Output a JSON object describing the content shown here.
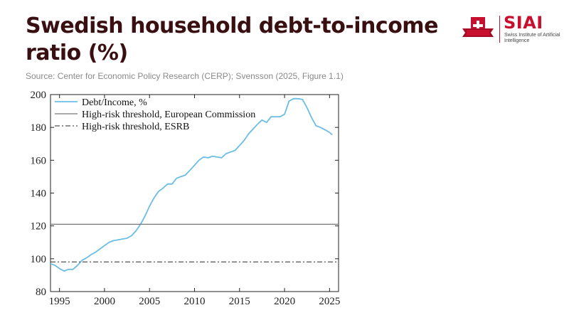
{
  "header": {
    "title": "Swedish household debt-to-income ratio (%)",
    "source": "Source: Center for Economic Policy Research (CERP); Svensson (2025, Figure 1.1)"
  },
  "logo": {
    "name": "SIAI",
    "subtitle": "Swiss Institute of Artificial Intelligence",
    "ribbon_text": "",
    "color": "#c8102e"
  },
  "colors": {
    "series": "#6bbde6",
    "ec_threshold": "#777777",
    "esrb_threshold": "#555555",
    "axis": "#222222"
  },
  "chart_data": {
    "type": "line",
    "title": "",
    "xlabel": "",
    "ylabel": "",
    "xlim": [
      1994,
      2026
    ],
    "ylim": [
      80,
      200
    ],
    "x_ticks": [
      "1995",
      "2000",
      "2005",
      "2010",
      "2015",
      "2020",
      "2025"
    ],
    "y_ticks": [
      "80",
      "100",
      "120",
      "140",
      "160",
      "180",
      "200"
    ],
    "grid": false,
    "legend_position": "top-left",
    "legend": [
      "Debt/Income, %",
      "High-risk threshold, European Commission",
      "High-risk threshold, ESRB"
    ],
    "series": [
      {
        "name": "Debt/Income, %",
        "style": "solid",
        "x": [
          1994.0,
          1994.5,
          1995.0,
          1995.5,
          1996.0,
          1996.5,
          1997.0,
          1997.5,
          1998.0,
          1998.5,
          1999.0,
          1999.5,
          2000.0,
          2000.5,
          2001.0,
          2001.5,
          2002.0,
          2002.5,
          2003.0,
          2003.5,
          2004.0,
          2004.5,
          2005.0,
          2005.5,
          2006.0,
          2006.5,
          2007.0,
          2007.5,
          2008.0,
          2008.5,
          2009.0,
          2009.5,
          2010.0,
          2010.5,
          2011.0,
          2011.5,
          2012.0,
          2012.5,
          2013.0,
          2013.5,
          2014.0,
          2014.5,
          2015.0,
          2015.5,
          2016.0,
          2016.5,
          2017.0,
          2017.5,
          2018.0,
          2018.5,
          2019.0,
          2019.5,
          2020.0,
          2020.5,
          2021.0,
          2021.5,
          2022.0,
          2022.5,
          2023.0,
          2023.5,
          2024.0,
          2024.5,
          2025.0,
          2025.3
        ],
        "values": [
          97,
          96,
          94,
          92.5,
          93.5,
          93.5,
          96,
          99,
          100.5,
          102.5,
          104,
          106,
          108,
          110,
          111,
          111.5,
          112,
          112.5,
          114,
          117,
          121,
          126,
          132,
          137,
          141,
          143,
          145.5,
          145.5,
          149,
          150,
          151,
          154,
          157,
          160,
          162,
          161.5,
          162.5,
          162,
          161.5,
          164,
          165,
          166,
          169,
          172,
          176,
          179,
          182,
          184.5,
          183,
          186.5,
          186.5,
          186.5,
          188,
          196,
          197.5,
          197.5,
          197,
          192,
          186,
          181,
          180,
          178.5,
          177,
          175.5
        ]
      },
      {
        "name": "High-risk threshold, European Commission",
        "style": "solid",
        "x": [
          1994,
          2026
        ],
        "values": [
          121,
          121
        ]
      },
      {
        "name": "High-risk threshold, ESRB",
        "style": "dashdot",
        "x": [
          1994,
          2026
        ],
        "values": [
          98,
          98
        ]
      }
    ]
  }
}
